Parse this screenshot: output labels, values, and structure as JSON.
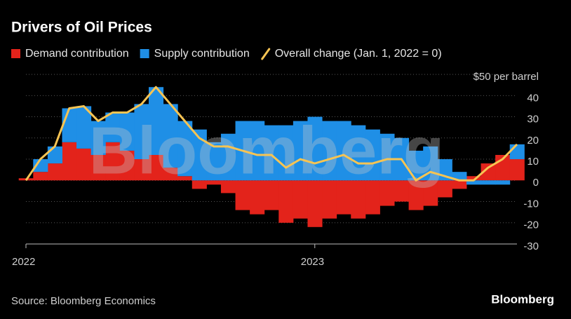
{
  "chart_data": {
    "type": "stacked-bar-line",
    "title": "Drivers of Oil Prices",
    "source": "Source: Bloomberg Economics",
    "logo": "Bloomberg",
    "watermark": "Bloomberg",
    "x": [
      2022.0,
      2022.05,
      2022.1,
      2022.15,
      2022.2,
      2022.25,
      2022.3,
      2022.35,
      2022.4,
      2022.45,
      2022.5,
      2022.55,
      2022.6,
      2022.65,
      2022.7,
      2022.75,
      2022.8,
      2022.85,
      2022.9,
      2022.95,
      2023.0,
      2023.05,
      2023.1,
      2023.15,
      2023.2,
      2023.25,
      2023.3,
      2023.35,
      2023.4,
      2023.45,
      2023.5,
      2023.55,
      2023.6,
      2023.65,
      2023.7
    ],
    "series": [
      {
        "name": "Demand contribution",
        "color": "#e3231b",
        "kind": "bar",
        "values": [
          1,
          4,
          8,
          18,
          15,
          12,
          18,
          14,
          10,
          12,
          6,
          2,
          -4,
          -2,
          -6,
          -14,
          -16,
          -14,
          -20,
          -18,
          -22,
          -18,
          -16,
          -18,
          -16,
          -12,
          -10,
          -14,
          -12,
          -8,
          -4,
          2,
          8,
          12,
          10
        ]
      },
      {
        "name": "Supply contribution",
        "color": "#1f8fe6",
        "kind": "bar",
        "values": [
          0,
          6,
          8,
          16,
          20,
          16,
          14,
          18,
          26,
          32,
          30,
          26,
          24,
          18,
          22,
          28,
          28,
          26,
          26,
          28,
          30,
          28,
          28,
          26,
          24,
          22,
          20,
          14,
          16,
          10,
          4,
          -2,
          -2,
          -2,
          7
        ]
      },
      {
        "name": "Overall change (Jan. 1, 2022 = 0)",
        "color": "#f7c453",
        "kind": "line",
        "values": [
          0,
          10,
          16,
          34,
          35,
          28,
          32,
          32,
          36,
          44,
          36,
          28,
          20,
          16,
          16,
          14,
          12,
          12,
          6,
          10,
          8,
          10,
          12,
          8,
          8,
          10,
          10,
          0,
          4,
          2,
          0,
          0,
          6,
          10,
          17
        ]
      }
    ],
    "xlim": [
      2022,
      2023.7
    ],
    "xticks": [
      2022,
      2023
    ],
    "ylim": [
      -30,
      53
    ],
    "yticks": [
      -30,
      -20,
      -10,
      0,
      10,
      20,
      30,
      40,
      {
        "value": 50,
        "label": "$50 per barrel"
      }
    ],
    "grid": true
  }
}
